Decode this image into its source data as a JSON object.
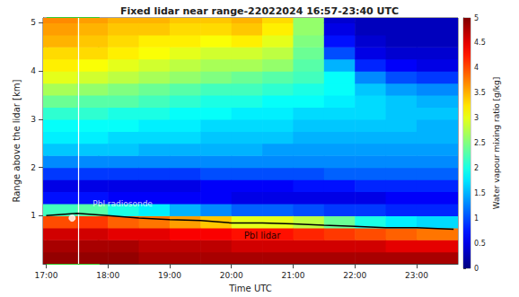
{
  "chart_data": {
    "type": "heatmap",
    "title": "Fixed lidar near range-22022024 16:57-23:40 UTC",
    "x_label": "Time UTC",
    "y_label": "Range above the lidar [km]",
    "xlim": [
      16.95,
      23.67
    ],
    "xticks": [
      {
        "value": 17,
        "label": "17:00"
      },
      {
        "value": 18,
        "label": "18:00"
      },
      {
        "value": 19,
        "label": "19:00"
      },
      {
        "value": 20,
        "label": "20:00"
      },
      {
        "value": 21,
        "label": "21:00"
      },
      {
        "value": 22,
        "label": "22:00"
      },
      {
        "value": 23,
        "label": "23:00"
      }
    ],
    "ylim": [
      0,
      5.1
    ],
    "yticks": [
      1,
      2,
      3,
      4,
      5
    ],
    "time_edges": [
      16.95,
      17.5,
      18,
      18.5,
      19,
      19.5,
      20,
      20.5,
      21,
      21.5,
      22,
      22.5,
      23,
      23.67
    ],
    "range_edges": [
      0,
      0.25,
      0.5,
      0.75,
      1,
      1.25,
      1.5,
      1.75,
      2,
      2.25,
      2.5,
      2.75,
      3,
      3.25,
      3.5,
      3.75,
      4,
      4.25,
      4.5,
      4.75,
      5,
      5.1
    ],
    "mixing_ratio": [
      [
        4.9,
        4.8,
        4.6,
        4.0,
        2.2,
        0.7,
        0.5,
        0.9,
        1.3,
        1.6,
        1.8,
        1.9,
        2.1,
        2.4,
        2.7,
        3.0,
        3.2,
        3.3,
        3.5,
        3.6,
        3.7
      ],
      [
        4.9,
        4.8,
        4.6,
        4.1,
        2.3,
        0.7,
        0.5,
        0.9,
        1.3,
        1.6,
        1.8,
        1.9,
        2.1,
        2.3,
        2.6,
        2.9,
        3.1,
        3.3,
        3.4,
        3.5,
        3.6
      ],
      [
        4.9,
        4.8,
        4.5,
        3.9,
        2.0,
        0.6,
        0.5,
        0.9,
        1.3,
        1.6,
        1.7,
        1.9,
        2.0,
        2.3,
        2.5,
        2.8,
        3.0,
        3.2,
        3.3,
        3.4,
        3.5
      ],
      [
        4.8,
        4.7,
        4.5,
        3.8,
        1.8,
        0.6,
        0.5,
        0.9,
        1.3,
        1.5,
        1.7,
        1.8,
        2.0,
        2.2,
        2.4,
        2.7,
        2.9,
        3.1,
        3.2,
        3.4,
        3.5
      ],
      [
        4.8,
        4.7,
        4.4,
        3.6,
        1.5,
        0.6,
        0.5,
        0.9,
        1.3,
        1.5,
        1.7,
        1.8,
        1.9,
        2.1,
        2.3,
        2.6,
        2.8,
        3.0,
        3.2,
        3.3,
        3.4
      ],
      [
        4.8,
        4.7,
        4.4,
        3.4,
        1.3,
        0.6,
        0.6,
        1.0,
        1.3,
        1.5,
        1.6,
        1.7,
        1.9,
        2.0,
        2.2,
        2.5,
        2.7,
        2.9,
        3.1,
        3.3,
        3.4
      ],
      [
        4.8,
        4.6,
        4.3,
        3.0,
        1.1,
        0.5,
        0.6,
        1.0,
        1.3,
        1.5,
        1.6,
        1.7,
        1.8,
        2.0,
        2.2,
        2.4,
        2.7,
        2.9,
        3.2,
        3.4,
        3.5
      ],
      [
        4.8,
        4.6,
        4.3,
        3.0,
        1.1,
        0.5,
        0.6,
        1.0,
        1.3,
        1.4,
        1.6,
        1.7,
        1.8,
        1.9,
        2.1,
        2.3,
        2.6,
        2.8,
        3.0,
        3.2,
        3.3
      ],
      [
        4.8,
        4.6,
        4.2,
        2.8,
        1.0,
        0.5,
        0.7,
        1.0,
        1.3,
        1.4,
        1.5,
        1.6,
        1.7,
        1.9,
        2.0,
        2.2,
        2.3,
        2.4,
        2.5,
        2.6,
        2.6
      ],
      [
        4.8,
        4.6,
        4.1,
        2.4,
        0.9,
        0.5,
        0.7,
        1.1,
        1.3,
        1.4,
        1.5,
        1.6,
        1.7,
        1.8,
        1.9,
        1.9,
        1.5,
        1.0,
        0.7,
        0.5,
        0.4
      ],
      [
        4.8,
        4.6,
        4.0,
        2.0,
        0.9,
        0.5,
        0.8,
        1.1,
        1.3,
        1.4,
        1.5,
        1.6,
        1.7,
        1.7,
        1.6,
        1.3,
        0.8,
        0.5,
        0.4,
        0.3,
        0.3
      ],
      [
        4.8,
        4.5,
        3.9,
        1.8,
        0.8,
        0.6,
        0.8,
        1.1,
        1.3,
        1.4,
        1.5,
        1.6,
        1.6,
        1.6,
        1.4,
        1.0,
        0.6,
        0.4,
        0.3,
        0.3,
        0.3
      ],
      [
        4.8,
        4.5,
        3.8,
        1.7,
        0.8,
        0.6,
        0.8,
        1.1,
        1.3,
        1.4,
        1.5,
        1.5,
        1.6,
        1.5,
        1.3,
        0.9,
        0.5,
        0.4,
        0.3,
        0.3,
        0.3
      ]
    ],
    "colorbar": {
      "label": "Water vapour mixing ratio [g/kg]",
      "range": [
        0,
        5
      ],
      "ticks": [
        0,
        0.5,
        1,
        1.5,
        2,
        2.5,
        3,
        3.5,
        4,
        4.5,
        5
      ]
    },
    "series": [
      {
        "name": "Pbl lidar",
        "type": "line",
        "color": "#000000",
        "x": [
          17.0,
          17.5,
          18.0,
          18.5,
          19.0,
          19.5,
          20.0,
          20.5,
          21.0,
          21.5,
          22.0,
          22.5,
          23.0,
          23.6
        ],
        "values": [
          1.0,
          1.05,
          1.0,
          0.95,
          0.92,
          0.9,
          0.85,
          0.85,
          0.83,
          0.8,
          0.78,
          0.75,
          0.75,
          0.72
        ]
      },
      {
        "name": "Pbl radiosonde",
        "type": "scatter",
        "color": "#ffffff",
        "marker": "circle",
        "x": [
          17.42
        ],
        "values": [
          0.95
        ]
      }
    ],
    "radiosonde_profile_time": 17.52,
    "selection_window": {
      "x": [
        17.02,
        17.85
      ],
      "color": "#33cc33"
    }
  }
}
